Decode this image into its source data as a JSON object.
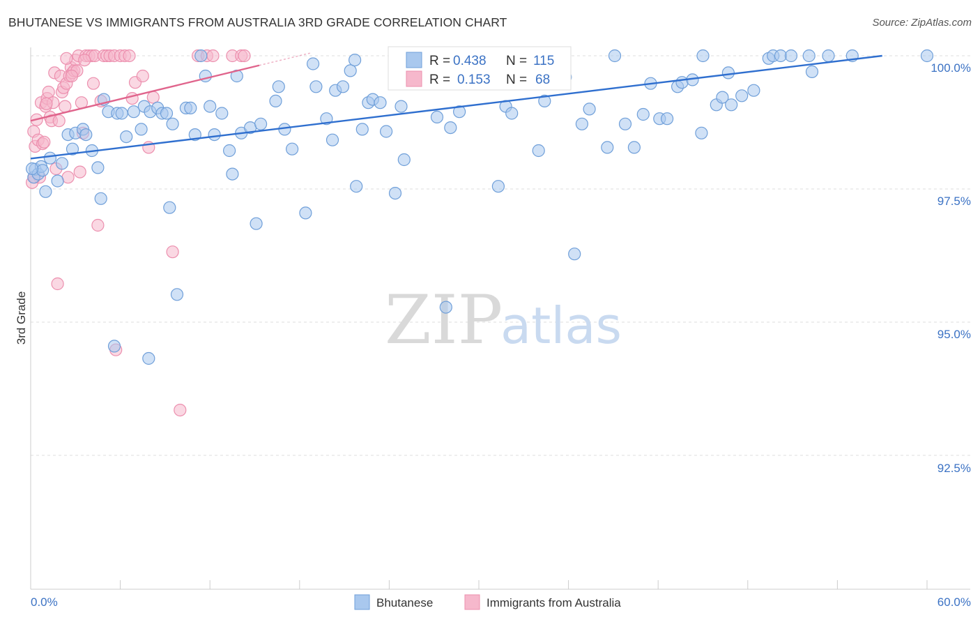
{
  "title": "BHUTANESE VS IMMIGRANTS FROM AUSTRALIA 3RD GRADE CORRELATION CHART",
  "source": "Source: ZipAtlas.com",
  "watermark": {
    "zip": "ZIP",
    "atlas": "atlas"
  },
  "colors": {
    "blue": "#a9c8ee",
    "blue_stroke": "#6f9fd9",
    "blue_line": "#2f6fcf",
    "pink": "#f6b8cc",
    "pink_stroke": "#ec8fae",
    "pink_line": "#e0648c",
    "tick_text": "#3b72c4",
    "grid": "#dddddd"
  },
  "legend_box": {
    "rows": [
      {
        "r_label": "R =",
        "r_value": "0.438",
        "n_label": "N =",
        "n_value": "115"
      },
      {
        "r_label": "R =",
        "r_value": "0.153",
        "n_label": "N =",
        "n_value": "68"
      }
    ]
  },
  "bottom_legend": [
    "Bhutanese",
    "Immigrants from Australia"
  ],
  "chart_data": {
    "type": "scatter",
    "title": "BHUTANESE VS IMMIGRANTS FROM AUSTRALIA 3RD GRADE CORRELATION CHART",
    "xlabel": "",
    "ylabel": "3rd Grade",
    "xlim": [
      0,
      60
    ],
    "ylim": [
      90.0,
      100.3
    ],
    "x_tick_labels": [
      "0.0%",
      "60.0%"
    ],
    "y_ticks": [
      100.0,
      97.5,
      95.0,
      92.5
    ],
    "y_tick_labels": [
      "100.0%",
      "97.5%",
      "95.0%",
      "92.5%"
    ],
    "grid": true,
    "series": [
      {
        "name": "Bhutanese",
        "R": 0.438,
        "N": 115,
        "trend": {
          "x0": 0,
          "y0": 98.07,
          "x1": 57.0,
          "y1": 100.0
        },
        "points": [
          [
            0.2,
            97.72
          ],
          [
            0.3,
            97.87
          ],
          [
            0.5,
            97.78
          ],
          [
            0.7,
            97.92
          ],
          [
            0.8,
            97.85
          ],
          [
            1.0,
            97.45
          ],
          [
            1.3,
            98.08
          ],
          [
            1.8,
            97.65
          ],
          [
            2.1,
            97.98
          ],
          [
            2.5,
            98.52
          ],
          [
            2.8,
            98.25
          ],
          [
            3.0,
            98.55
          ],
          [
            3.5,
            98.62
          ],
          [
            3.7,
            98.52
          ],
          [
            4.1,
            98.22
          ],
          [
            4.7,
            97.32
          ],
          [
            4.9,
            99.18
          ],
          [
            5.2,
            98.95
          ],
          [
            5.8,
            98.92
          ],
          [
            6.1,
            98.92
          ],
          [
            6.4,
            98.48
          ],
          [
            6.9,
            98.95
          ],
          [
            7.4,
            98.62
          ],
          [
            7.6,
            99.05
          ],
          [
            8.0,
            98.95
          ],
          [
            8.5,
            99.02
          ],
          [
            8.8,
            98.92
          ],
          [
            9.1,
            98.92
          ],
          [
            9.3,
            97.15
          ],
          [
            9.5,
            98.72
          ],
          [
            9.8,
            95.52
          ],
          [
            10.4,
            99.02
          ],
          [
            10.7,
            99.02
          ],
          [
            11.0,
            98.52
          ],
          [
            11.4,
            100.0
          ],
          [
            11.7,
            99.62
          ],
          [
            12.0,
            99.05
          ],
          [
            12.3,
            98.52
          ],
          [
            12.8,
            98.92
          ],
          [
            13.3,
            98.22
          ],
          [
            13.5,
            97.78
          ],
          [
            13.8,
            99.62
          ],
          [
            14.1,
            98.55
          ],
          [
            14.7,
            98.65
          ],
          [
            15.1,
            96.85
          ],
          [
            15.4,
            98.72
          ],
          [
            16.4,
            99.15
          ],
          [
            16.6,
            99.42
          ],
          [
            17.0,
            98.62
          ],
          [
            17.5,
            98.25
          ],
          [
            18.4,
            97.05
          ],
          [
            18.9,
            99.85
          ],
          [
            19.1,
            99.42
          ],
          [
            19.8,
            98.82
          ],
          [
            20.2,
            98.42
          ],
          [
            20.4,
            99.35
          ],
          [
            20.9,
            99.42
          ],
          [
            21.4,
            99.72
          ],
          [
            21.8,
            97.55
          ],
          [
            22.2,
            98.62
          ],
          [
            22.6,
            99.12
          ],
          [
            22.9,
            99.18
          ],
          [
            23.4,
            99.12
          ],
          [
            23.8,
            98.58
          ],
          [
            24.4,
            97.42
          ],
          [
            24.8,
            99.05
          ],
          [
            25.0,
            98.05
          ],
          [
            25.7,
            99.82
          ],
          [
            26.4,
            99.65
          ],
          [
            27.2,
            98.85
          ],
          [
            27.8,
            95.28
          ],
          [
            28.1,
            98.65
          ],
          [
            28.7,
            98.95
          ],
          [
            30.4,
            100.0
          ],
          [
            31.3,
            97.55
          ],
          [
            31.8,
            99.05
          ],
          [
            32.2,
            98.92
          ],
          [
            33.4,
            100.0
          ],
          [
            34.0,
            98.22
          ],
          [
            34.4,
            99.15
          ],
          [
            35.8,
            99.6
          ],
          [
            36.4,
            96.28
          ],
          [
            36.9,
            98.72
          ],
          [
            37.4,
            99.0
          ],
          [
            38.6,
            98.28
          ],
          [
            39.1,
            100.0
          ],
          [
            39.8,
            98.72
          ],
          [
            40.4,
            98.28
          ],
          [
            41.0,
            98.9
          ],
          [
            41.5,
            99.48
          ],
          [
            42.1,
            98.82
          ],
          [
            42.6,
            98.82
          ],
          [
            43.3,
            99.42
          ],
          [
            43.6,
            99.5
          ],
          [
            44.3,
            99.55
          ],
          [
            44.9,
            98.55
          ],
          [
            45.0,
            100.0
          ],
          [
            45.9,
            99.08
          ],
          [
            46.3,
            99.22
          ],
          [
            46.7,
            99.68
          ],
          [
            46.9,
            99.08
          ],
          [
            47.6,
            99.25
          ],
          [
            48.4,
            99.35
          ],
          [
            49.4,
            99.95
          ],
          [
            49.7,
            100.0
          ],
          [
            50.2,
            100.0
          ],
          [
            50.9,
            100.0
          ],
          [
            52.1,
            100.0
          ],
          [
            52.3,
            99.7
          ],
          [
            53.4,
            100.0
          ],
          [
            55.0,
            100.0
          ],
          [
            60.0,
            100.0
          ],
          [
            0.1,
            97.88
          ],
          [
            5.6,
            94.55
          ],
          [
            7.9,
            94.32
          ],
          [
            21.7,
            99.92
          ],
          [
            4.5,
            97.9
          ]
        ]
      },
      {
        "name": "Immigrants from Australia",
        "R": 0.153,
        "N": 68,
        "trend": {
          "x0": 0,
          "y0": 98.78,
          "x1": 15.3,
          "y1": 99.82
        },
        "points": [
          [
            0.1,
            97.62
          ],
          [
            0.2,
            98.58
          ],
          [
            0.3,
            98.3
          ],
          [
            0.4,
            98.8
          ],
          [
            0.5,
            98.42
          ],
          [
            0.6,
            97.72
          ],
          [
            0.7,
            99.12
          ],
          [
            0.8,
            98.35
          ],
          [
            0.9,
            98.38
          ],
          [
            1.0,
            99.05
          ],
          [
            1.1,
            99.2
          ],
          [
            1.2,
            99.32
          ],
          [
            1.3,
            98.85
          ],
          [
            1.4,
            98.78
          ],
          [
            1.5,
            99.12
          ],
          [
            1.6,
            99.68
          ],
          [
            1.7,
            97.88
          ],
          [
            1.8,
            95.72
          ],
          [
            1.9,
            98.78
          ],
          [
            2.0,
            99.62
          ],
          [
            2.1,
            99.32
          ],
          [
            2.2,
            99.4
          ],
          [
            2.3,
            99.05
          ],
          [
            2.4,
            99.48
          ],
          [
            2.5,
            97.72
          ],
          [
            2.6,
            99.62
          ],
          [
            2.7,
            99.78
          ],
          [
            2.8,
            99.68
          ],
          [
            2.9,
            99.72
          ],
          [
            3.0,
            99.92
          ],
          [
            3.1,
            99.72
          ],
          [
            3.2,
            100.0
          ],
          [
            3.3,
            97.82
          ],
          [
            3.4,
            99.12
          ],
          [
            3.5,
            98.55
          ],
          [
            3.7,
            100.0
          ],
          [
            3.9,
            100.0
          ],
          [
            4.1,
            100.0
          ],
          [
            4.3,
            100.0
          ],
          [
            4.5,
            96.82
          ],
          [
            4.7,
            99.15
          ],
          [
            4.9,
            100.0
          ],
          [
            5.1,
            100.0
          ],
          [
            5.3,
            100.0
          ],
          [
            5.6,
            100.0
          ],
          [
            6.0,
            100.0
          ],
          [
            6.3,
            100.0
          ],
          [
            6.6,
            100.0
          ],
          [
            7.0,
            99.5
          ],
          [
            7.5,
            99.62
          ],
          [
            7.9,
            98.28
          ],
          [
            8.2,
            99.22
          ],
          [
            9.5,
            96.32
          ],
          [
            10.0,
            93.35
          ],
          [
            11.2,
            100.0
          ],
          [
            11.8,
            100.0
          ],
          [
            12.2,
            100.0
          ],
          [
            13.5,
            100.0
          ],
          [
            14.1,
            100.0
          ],
          [
            14.3,
            100.0
          ],
          [
            2.4,
            99.95
          ],
          [
            3.6,
            99.92
          ],
          [
            4.2,
            99.48
          ],
          [
            5.7,
            94.48
          ],
          [
            0.25,
            97.72
          ],
          [
            1.05,
            99.1
          ],
          [
            2.75,
            99.62
          ],
          [
            6.8,
            99.2
          ]
        ]
      }
    ]
  }
}
